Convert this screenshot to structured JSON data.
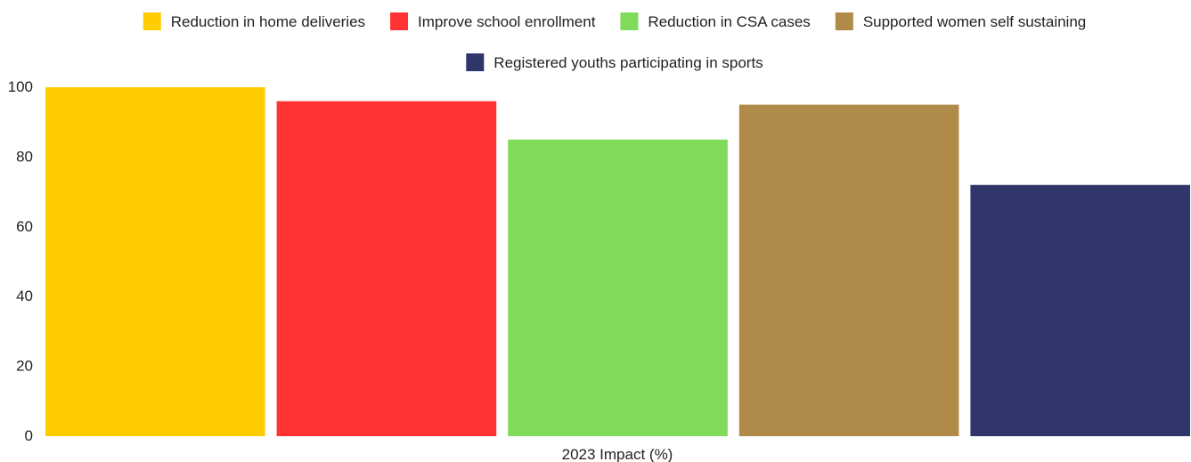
{
  "chart_data": {
    "type": "bar",
    "categories": [
      "2023 Impact (%)"
    ],
    "xlabel": "2023 Impact (%)",
    "ylabel": "",
    "ylim": [
      0,
      100
    ],
    "yticks": [
      0,
      20,
      40,
      60,
      80,
      100
    ],
    "grid": false,
    "legend_position": "top",
    "series": [
      {
        "name": "Reduction in home deliveries",
        "values": [
          100
        ],
        "color": "#FFCC00"
      },
      {
        "name": "Improve school enrollment",
        "values": [
          96
        ],
        "color": "#FF3333"
      },
      {
        "name": "Reduction in CSA cases",
        "values": [
          85
        ],
        "color": "#80DB5A"
      },
      {
        "name": "Supported women self sustaining",
        "values": [
          95
        ],
        "color": "#B08A48"
      },
      {
        "name": "Registered youths participating in sports",
        "values": [
          72
        ],
        "color": "#30356A"
      }
    ]
  }
}
